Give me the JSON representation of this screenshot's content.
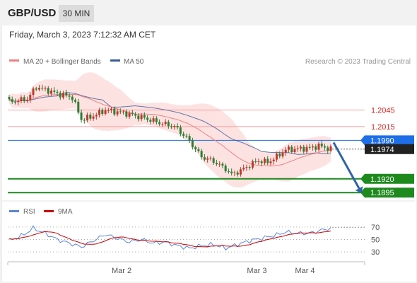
{
  "header": {
    "symbol": "GBP/USD",
    "timeframe": "30 MIN",
    "datetime": "Friday, March 3, 2023 7:12:32 AM CET"
  },
  "colors": {
    "candle_up": "#c0392b",
    "candle_down": "#2e7d32",
    "bollinger_fill": "#fde2e2",
    "ma20": "#f08080",
    "ma50": "#3a5a9a",
    "resistance": "#ff9c9c",
    "pivot": "#1e6ee8",
    "support": "#1e8a1e",
    "rsi": "#5b86d6",
    "rsi_ma": "#cc0000",
    "arrow": "#2f64a8"
  },
  "chart_data": [
    {
      "type": "candlestick",
      "legend": [
        {
          "name": "MA 20 + Bollinger Bands",
          "color": "#f08080"
        },
        {
          "name": "MA 50",
          "color": "#3a5a9a"
        }
      ],
      "source_label": "Research © 2023 Trading Central",
      "ylim": [
        1.1885,
        1.211
      ],
      "levels": [
        {
          "label": "1.2045",
          "value": 1.2045,
          "kind": "resistance"
        },
        {
          "label": "1.2015",
          "value": 1.2015,
          "kind": "resistance"
        },
        {
          "label": "1.1990",
          "value": 1.199,
          "kind": "pivot"
        },
        {
          "label": "1.1974",
          "value": 1.1974,
          "kind": "last"
        },
        {
          "label": "1.1920",
          "value": 1.192,
          "kind": "support"
        },
        {
          "label": "1.1895",
          "value": 1.1895,
          "kind": "support"
        }
      ],
      "x_labels": [
        {
          "label": "Mar 2",
          "index": 40
        },
        {
          "label": "Mar 3",
          "index": 85
        },
        {
          "label": "Mar 4",
          "index": 101
        }
      ],
      "close_anchors": [
        [
          0,
          1.206
        ],
        [
          6,
          1.2065
        ],
        [
          9,
          1.2087
        ],
        [
          12,
          1.2082
        ],
        [
          16,
          1.2075
        ],
        [
          21,
          1.2068
        ],
        [
          24,
          1.2028
        ],
        [
          27,
          1.2032
        ],
        [
          32,
          1.2045
        ],
        [
          38,
          1.204
        ],
        [
          44,
          1.2032
        ],
        [
          50,
          1.2022
        ],
        [
          55,
          1.2015
        ],
        [
          59,
          1.1995
        ],
        [
          64,
          1.196
        ],
        [
          68,
          1.1952
        ],
        [
          72,
          1.1938
        ],
        [
          74,
          1.1928
        ],
        [
          77,
          1.1935
        ],
        [
          80,
          1.1945
        ],
        [
          83,
          1.1953
        ],
        [
          86,
          1.195
        ],
        [
          89,
          1.196
        ],
        [
          92,
          1.1973
        ],
        [
          95,
          1.1974
        ],
        [
          100,
          1.1976
        ],
        [
          103,
          1.198
        ],
        [
          107,
          1.1974
        ]
      ],
      "projection": {
        "from": 1.1986,
        "to": 1.1895
      }
    },
    {
      "type": "line",
      "legend": [
        {
          "name": "RSI",
          "color": "#5b86d6"
        },
        {
          "name": "9MA",
          "color": "#cc0000"
        }
      ],
      "ylim": [
        20,
        80
      ],
      "y_ticks": [
        {
          "label": "70",
          "value": 70
        },
        {
          "label": "50",
          "value": 50
        },
        {
          "label": "30",
          "value": 30
        }
      ],
      "rsi_anchors": [
        [
          0,
          48
        ],
        [
          5,
          58
        ],
        [
          8,
          68
        ],
        [
          12,
          60
        ],
        [
          16,
          50
        ],
        [
          20,
          44
        ],
        [
          24,
          38
        ],
        [
          28,
          48
        ],
        [
          32,
          58
        ],
        [
          36,
          52
        ],
        [
          40,
          46
        ],
        [
          44,
          50
        ],
        [
          48,
          44
        ],
        [
          52,
          46
        ],
        [
          56,
          40
        ],
        [
          60,
          36
        ],
        [
          64,
          40
        ],
        [
          68,
          42
        ],
        [
          72,
          36
        ],
        [
          76,
          42
        ],
        [
          80,
          48
        ],
        [
          84,
          52
        ],
        [
          88,
          56
        ],
        [
          92,
          62
        ],
        [
          96,
          60
        ],
        [
          100,
          60
        ],
        [
          104,
          65
        ],
        [
          107,
          68
        ]
      ]
    }
  ]
}
